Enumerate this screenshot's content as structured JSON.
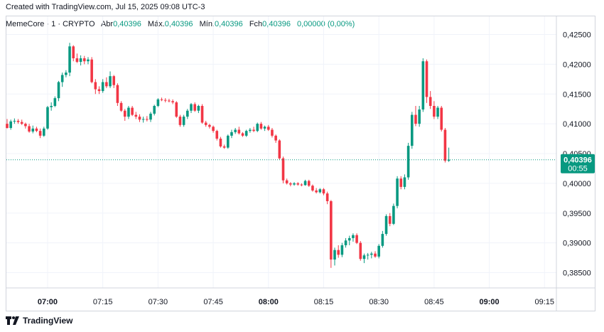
{
  "header": {
    "created": "Created with TradingView.com, Jul 15, 2025 09:08 UTC-3"
  },
  "legend": {
    "symbol": "MemeCore · 1 · CRYPTO",
    "open_label": "Abr",
    "open": "0,40396",
    "high_label": "Máx.",
    "high": "0,40396",
    "low_label": "Mín.",
    "low": "0,40396",
    "close_label": "Fch",
    "close": "0,40396",
    "change": "0,00000 (0,00%)"
  },
  "price_tag": {
    "price": "0,40396",
    "countdown": "00:55"
  },
  "logo": {
    "text": "TradingView"
  },
  "colors": {
    "up": "#089981",
    "down": "#f23645",
    "grid": "#f0f3fa",
    "tag": "#089981"
  },
  "chart_data": {
    "type": "candlestick",
    "y_ticks": [
      "0,42500",
      "0,42000",
      "0,41500",
      "0,41000",
      "0,40500",
      "0,40000",
      "0,39500",
      "0,39000",
      "0,38500"
    ],
    "y_tick_values": [
      0.425,
      0.42,
      0.415,
      0.41,
      0.405,
      0.4,
      0.395,
      0.39,
      0.385
    ],
    "ylim": [
      0.3835,
      0.4266
    ],
    "x_ticks": [
      "07:00",
      "07:15",
      "07:30",
      "07:45",
      "08:00",
      "08:15",
      "08:30",
      "08:45",
      "09:00",
      "09:15"
    ],
    "x_tick_bold": [
      "07:00",
      "08:00",
      "09:00"
    ],
    "x_start": "06:49",
    "current_price": 0.40396,
    "candles": [
      [
        0.41,
        0.4108,
        0.4092,
        0.4093
      ],
      [
        0.4093,
        0.4107,
        0.409,
        0.4104
      ],
      [
        0.4104,
        0.4109,
        0.41,
        0.4105
      ],
      [
        0.4105,
        0.4108,
        0.41,
        0.4103
      ],
      [
        0.4103,
        0.4107,
        0.4098,
        0.41
      ],
      [
        0.41,
        0.4102,
        0.4092,
        0.4096
      ],
      [
        0.4096,
        0.41,
        0.4085,
        0.4087
      ],
      [
        0.4087,
        0.4097,
        0.4084,
        0.4092
      ],
      [
        0.4092,
        0.4095,
        0.4086,
        0.4088
      ],
      [
        0.4088,
        0.4092,
        0.4076,
        0.408
      ],
      [
        0.408,
        0.4095,
        0.4078,
        0.4092
      ],
      [
        0.4092,
        0.413,
        0.409,
        0.4128
      ],
      [
        0.4128,
        0.4136,
        0.4122,
        0.413
      ],
      [
        0.413,
        0.4146,
        0.4128,
        0.4143
      ],
      [
        0.4143,
        0.4172,
        0.4138,
        0.417
      ],
      [
        0.417,
        0.4186,
        0.4162,
        0.4182
      ],
      [
        0.4182,
        0.419,
        0.4178,
        0.4186
      ],
      [
        0.4186,
        0.4236,
        0.418,
        0.423
      ],
      [
        0.423,
        0.4232,
        0.4205,
        0.421
      ],
      [
        0.421,
        0.4218,
        0.4202,
        0.4204
      ],
      [
        0.4204,
        0.4215,
        0.4198,
        0.421
      ],
      [
        0.421,
        0.4214,
        0.42,
        0.4205
      ],
      [
        0.4205,
        0.4212,
        0.42,
        0.4208
      ],
      [
        0.4208,
        0.4212,
        0.4168,
        0.417
      ],
      [
        0.417,
        0.4175,
        0.415,
        0.4158
      ],
      [
        0.4158,
        0.4163,
        0.415,
        0.4155
      ],
      [
        0.4155,
        0.4175,
        0.4152,
        0.417
      ],
      [
        0.417,
        0.4178,
        0.416,
        0.4163
      ],
      [
        0.4163,
        0.4188,
        0.416,
        0.418
      ],
      [
        0.418,
        0.4182,
        0.416,
        0.4165
      ],
      [
        0.4165,
        0.4168,
        0.413,
        0.4135
      ],
      [
        0.4135,
        0.4138,
        0.412,
        0.4122
      ],
      [
        0.4122,
        0.4125,
        0.4105,
        0.4112
      ],
      [
        0.4112,
        0.413,
        0.4108,
        0.4127
      ],
      [
        0.4127,
        0.413,
        0.4113,
        0.4115
      ],
      [
        0.4115,
        0.412,
        0.4108,
        0.4112
      ],
      [
        0.4112,
        0.4116,
        0.4103,
        0.4107
      ],
      [
        0.4107,
        0.4112,
        0.4102,
        0.4108
      ],
      [
        0.4108,
        0.4113,
        0.4104,
        0.4107
      ],
      [
        0.4107,
        0.412,
        0.4103,
        0.4117
      ],
      [
        0.4117,
        0.4132,
        0.4114,
        0.413
      ],
      [
        0.413,
        0.4143,
        0.4128,
        0.4141
      ],
      [
        0.4141,
        0.4144,
        0.4138,
        0.414
      ],
      [
        0.414,
        0.4143,
        0.4136,
        0.4139
      ],
      [
        0.4139,
        0.4142,
        0.4136,
        0.4138
      ],
      [
        0.4138,
        0.4141,
        0.4133,
        0.4136
      ],
      [
        0.4136,
        0.4138,
        0.411,
        0.4112
      ],
      [
        0.4112,
        0.4115,
        0.4095,
        0.4098
      ],
      [
        0.4098,
        0.4115,
        0.4095,
        0.4112
      ],
      [
        0.4112,
        0.4125,
        0.4108,
        0.4122
      ],
      [
        0.4122,
        0.4135,
        0.4118,
        0.4133
      ],
      [
        0.4133,
        0.4136,
        0.412,
        0.4122
      ],
      [
        0.4122,
        0.4132,
        0.4118,
        0.413
      ],
      [
        0.413,
        0.4133,
        0.41,
        0.4102
      ],
      [
        0.4102,
        0.4105,
        0.4095,
        0.4098
      ],
      [
        0.4098,
        0.41,
        0.4092,
        0.4095
      ],
      [
        0.4095,
        0.4097,
        0.4085,
        0.4088
      ],
      [
        0.4088,
        0.409,
        0.4072,
        0.4075
      ],
      [
        0.4075,
        0.4078,
        0.406,
        0.4062
      ],
      [
        0.4062,
        0.4065,
        0.4058,
        0.406
      ],
      [
        0.406,
        0.4082,
        0.4058,
        0.408
      ],
      [
        0.408,
        0.409,
        0.4076,
        0.4086
      ],
      [
        0.4086,
        0.4093,
        0.4083,
        0.409
      ],
      [
        0.409,
        0.4095,
        0.4082,
        0.4084
      ],
      [
        0.4084,
        0.4086,
        0.4078,
        0.408
      ],
      [
        0.408,
        0.409,
        0.4078,
        0.4088
      ],
      [
        0.4088,
        0.4093,
        0.4085,
        0.409
      ],
      [
        0.409,
        0.4095,
        0.4086,
        0.4088
      ],
      [
        0.4088,
        0.4102,
        0.4086,
        0.41
      ],
      [
        0.41,
        0.4103,
        0.409,
        0.4092
      ],
      [
        0.4092,
        0.4097,
        0.4088,
        0.4095
      ],
      [
        0.4095,
        0.4098,
        0.4088,
        0.409
      ],
      [
        0.409,
        0.4093,
        0.4077,
        0.408
      ],
      [
        0.408,
        0.4082,
        0.4068,
        0.4072
      ],
      [
        0.4072,
        0.4074,
        0.404,
        0.4042
      ],
      [
        0.4042,
        0.4045,
        0.4,
        0.4005
      ],
      [
        0.4005,
        0.4008,
        0.3998,
        0.4
      ],
      [
        0.4,
        0.4002,
        0.3995,
        0.3998
      ],
      [
        0.3998,
        0.4002,
        0.3996,
        0.4
      ],
      [
        0.4,
        0.4002,
        0.3996,
        0.3998
      ],
      [
        0.3998,
        0.4,
        0.3995,
        0.3997
      ],
      [
        0.3997,
        0.4006,
        0.3996,
        0.4004
      ],
      [
        0.4004,
        0.4006,
        0.3994,
        0.3996
      ],
      [
        0.3996,
        0.3998,
        0.3986,
        0.3988
      ],
      [
        0.3988,
        0.3992,
        0.3983,
        0.3985
      ],
      [
        0.3985,
        0.3992,
        0.3983,
        0.399
      ],
      [
        0.399,
        0.3992,
        0.398,
        0.3983
      ],
      [
        0.3983,
        0.3986,
        0.3965,
        0.397
      ],
      [
        0.397,
        0.3972,
        0.3858,
        0.3872
      ],
      [
        0.3872,
        0.3892,
        0.3862,
        0.3888
      ],
      [
        0.3888,
        0.3896,
        0.3875,
        0.388
      ],
      [
        0.388,
        0.39,
        0.3876,
        0.3896
      ],
      [
        0.3896,
        0.3908,
        0.3892,
        0.3904
      ],
      [
        0.3904,
        0.3912,
        0.3896,
        0.3908
      ],
      [
        0.3908,
        0.3916,
        0.3902,
        0.3913
      ],
      [
        0.3913,
        0.3916,
        0.3898,
        0.39
      ],
      [
        0.39,
        0.3903,
        0.387,
        0.3873
      ],
      [
        0.3873,
        0.3882,
        0.3866,
        0.3879
      ],
      [
        0.3879,
        0.3883,
        0.3872,
        0.388
      ],
      [
        0.388,
        0.3885,
        0.3874,
        0.3882
      ],
      [
        0.3882,
        0.3886,
        0.3875,
        0.3877
      ],
      [
        0.3877,
        0.3898,
        0.3874,
        0.3895
      ],
      [
        0.3895,
        0.392,
        0.3892,
        0.3915
      ],
      [
        0.3915,
        0.3948,
        0.3912,
        0.3945
      ],
      [
        0.3945,
        0.395,
        0.3928,
        0.3932
      ],
      [
        0.3932,
        0.3966,
        0.393,
        0.3962
      ],
      [
        0.3962,
        0.4012,
        0.3958,
        0.4008
      ],
      [
        0.4008,
        0.4012,
        0.399,
        0.3994
      ],
      [
        0.3994,
        0.4015,
        0.399,
        0.401
      ],
      [
        0.401,
        0.4068,
        0.4006,
        0.4063
      ],
      [
        0.4063,
        0.412,
        0.4058,
        0.4115
      ],
      [
        0.4115,
        0.413,
        0.4096,
        0.41
      ],
      [
        0.41,
        0.413,
        0.4095,
        0.4124
      ],
      [
        0.4124,
        0.421,
        0.412,
        0.4205
      ],
      [
        0.4205,
        0.4208,
        0.4135,
        0.4145
      ],
      [
        0.4145,
        0.4155,
        0.4125,
        0.413
      ],
      [
        0.413,
        0.4138,
        0.4108,
        0.4112
      ],
      [
        0.4112,
        0.413,
        0.4108,
        0.4127
      ],
      [
        0.4127,
        0.413,
        0.4087,
        0.409
      ],
      [
        0.409,
        0.4093,
        0.4035,
        0.4038
      ],
      [
        0.4038,
        0.406,
        0.4036,
        0.40396
      ]
    ]
  }
}
